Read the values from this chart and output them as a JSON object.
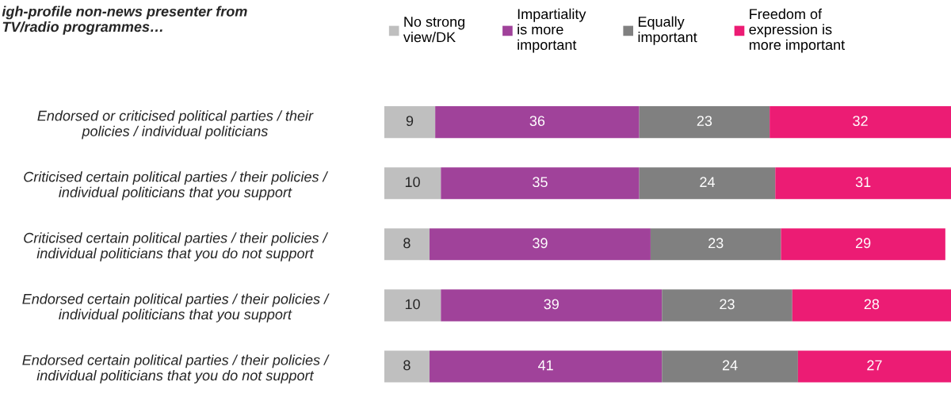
{
  "chart_data": {
    "type": "bar",
    "orientation": "horizontal",
    "stacked": true,
    "data_labels": true,
    "legend": "top",
    "grid": false,
    "title": "igh-profile non-news presenter from\nTV/radio programmes…",
    "categories": [
      "Endorsed or criticised political parties / their\npolicies / individual politicians",
      "Criticised certain political parties / their policies /\nindividual politicians that you support",
      "Criticised certain political parties / their policies /\nindividual politicians that you do not support",
      "Endorsed certain political parties / their policies /\nindividual politicians that you support",
      "Endorsed certain political parties / their policies /\nindividual politicians that you do not support"
    ],
    "series": [
      {
        "name": "No strong\nview/DK",
        "color": "#bfbfbf",
        "values": [
          9,
          10,
          8,
          10,
          8
        ]
      },
      {
        "name": "Impartiality\nis more\nimportant",
        "color": "#a0429a",
        "values": [
          36,
          35,
          39,
          39,
          41
        ]
      },
      {
        "name": "Equally\nimportant",
        "color": "#808080",
        "values": [
          23,
          24,
          23,
          23,
          24
        ]
      },
      {
        "name": "Freedom of\nexpression is\nmore important",
        "color": "#ec1c74",
        "values": [
          32,
          31,
          29,
          28,
          27
        ]
      }
    ]
  }
}
